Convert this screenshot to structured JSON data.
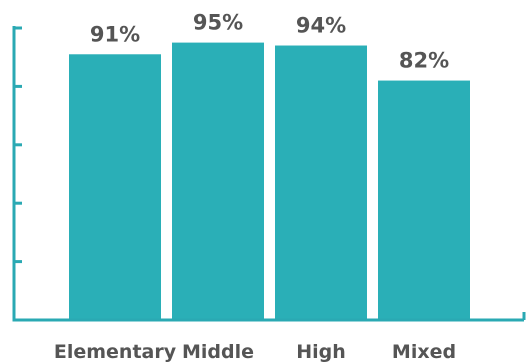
{
  "chart_data": {
    "type": "bar",
    "categories": [
      "Elementary",
      "Middle",
      "High",
      "Mixed"
    ],
    "values": [
      91,
      95,
      94,
      82
    ],
    "data_labels": [
      "91%",
      "95%",
      "94%",
      "82%"
    ],
    "ylim": [
      0,
      100
    ],
    "yticks": [
      0,
      20,
      40,
      60,
      80,
      100
    ],
    "grid": false,
    "legend": "none",
    "title": "",
    "xlabel": "",
    "ylabel": "",
    "colors": {
      "bar": "#2aafb7",
      "axis": "#2aa9b3",
      "text": "#555555"
    }
  }
}
